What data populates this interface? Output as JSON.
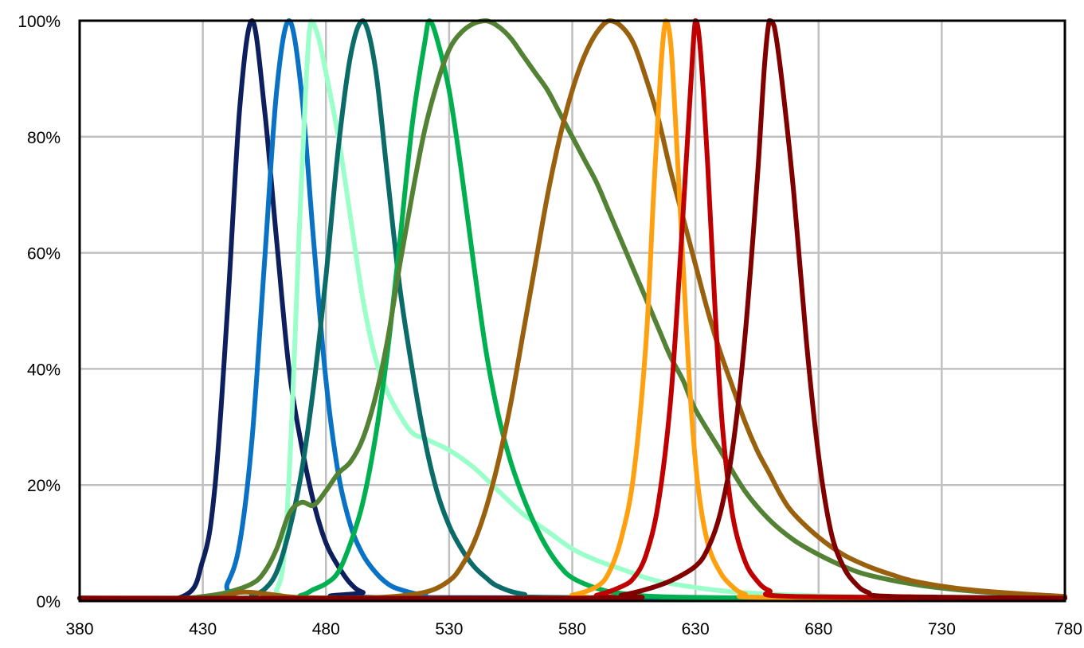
{
  "chart_data": {
    "type": "line",
    "title": "",
    "xlabel": "",
    "ylabel": "",
    "xlim": [
      380,
      780
    ],
    "ylim": [
      0,
      100
    ],
    "x_ticks": [
      380,
      430,
      480,
      530,
      580,
      630,
      680,
      730,
      780
    ],
    "x_tick_labels": [
      "380",
      "430",
      "480",
      "530",
      "580",
      "630",
      "680",
      "730",
      "780"
    ],
    "y_ticks": [
      0,
      20,
      40,
      60,
      80,
      100
    ],
    "y_tick_labels": [
      "0%",
      "20%",
      "40%",
      "60%",
      "80%",
      "100%"
    ],
    "grid": true,
    "legend": "none",
    "series": [
      {
        "color": "#0d1f5c",
        "points": [
          [
            380,
            0.5
          ],
          [
            420,
            0.5
          ],
          [
            430,
            7
          ],
          [
            435,
            20
          ],
          [
            440,
            50
          ],
          [
            445,
            85
          ],
          [
            450,
            100
          ],
          [
            455,
            85
          ],
          [
            460,
            62
          ],
          [
            465,
            40
          ],
          [
            470,
            27
          ],
          [
            475,
            17
          ],
          [
            480,
            10
          ],
          [
            485,
            6
          ],
          [
            490,
            3
          ],
          [
            495,
            1.5
          ],
          [
            505,
            0.6
          ],
          [
            780,
            0.5
          ]
        ]
      },
      {
        "color": "#0a72c4",
        "points": [
          [
            380,
            0.5
          ],
          [
            435,
            0.5
          ],
          [
            440,
            3
          ],
          [
            445,
            10
          ],
          [
            450,
            28
          ],
          [
            455,
            58
          ],
          [
            460,
            88
          ],
          [
            465,
            100
          ],
          [
            470,
            88
          ],
          [
            475,
            62
          ],
          [
            480,
            38
          ],
          [
            485,
            22
          ],
          [
            490,
            13
          ],
          [
            495,
            8
          ],
          [
            500,
            5
          ],
          [
            505,
            3
          ],
          [
            510,
            2
          ],
          [
            520,
            1
          ],
          [
            540,
            0.5
          ],
          [
            780,
            0.5
          ]
        ]
      },
      {
        "color": "#9bffca",
        "points": [
          [
            380,
            0.5
          ],
          [
            455,
            0.5
          ],
          [
            460,
            2
          ],
          [
            463,
            8
          ],
          [
            466,
            30
          ],
          [
            469,
            62
          ],
          [
            472,
            90
          ],
          [
            474,
            100
          ],
          [
            477,
            97
          ],
          [
            480,
            91
          ],
          [
            485,
            80
          ],
          [
            490,
            66
          ],
          [
            495,
            52
          ],
          [
            500,
            42
          ],
          [
            505,
            36
          ],
          [
            510,
            32
          ],
          [
            515,
            29
          ],
          [
            520,
            28
          ],
          [
            530,
            26
          ],
          [
            540,
            23
          ],
          [
            550,
            19
          ],
          [
            560,
            15
          ],
          [
            570,
            12
          ],
          [
            580,
            9
          ],
          [
            590,
            7
          ],
          [
            600,
            5.5
          ],
          [
            610,
            4
          ],
          [
            620,
            3
          ],
          [
            640,
            1.8
          ],
          [
            660,
            1.2
          ],
          [
            700,
            0.7
          ],
          [
            780,
            0.5
          ]
        ]
      },
      {
        "color": "#0a6b68",
        "points": [
          [
            380,
            0.5
          ],
          [
            445,
            0.5
          ],
          [
            450,
            1
          ],
          [
            455,
            2
          ],
          [
            460,
            5
          ],
          [
            465,
            12
          ],
          [
            470,
            22
          ],
          [
            475,
            37
          ],
          [
            480,
            56
          ],
          [
            485,
            78
          ],
          [
            490,
            94
          ],
          [
            495,
            100
          ],
          [
            500,
            92
          ],
          [
            505,
            73
          ],
          [
            510,
            54
          ],
          [
            515,
            40
          ],
          [
            520,
            28
          ],
          [
            525,
            19
          ],
          [
            530,
            13
          ],
          [
            535,
            9
          ],
          [
            540,
            6
          ],
          [
            545,
            4
          ],
          [
            550,
            2.5
          ],
          [
            560,
            1.2
          ],
          [
            580,
            0.6
          ],
          [
            780,
            0.5
          ]
        ]
      },
      {
        "color": "#00b050",
        "points": [
          [
            380,
            0.5
          ],
          [
            460,
            0.5
          ],
          [
            470,
            1
          ],
          [
            475,
            2
          ],
          [
            480,
            3
          ],
          [
            485,
            5
          ],
          [
            490,
            10
          ],
          [
            495,
            17
          ],
          [
            500,
            28
          ],
          [
            505,
            43
          ],
          [
            510,
            62
          ],
          [
            515,
            82
          ],
          [
            520,
            96
          ],
          [
            522,
            100
          ],
          [
            525,
            97
          ],
          [
            530,
            88
          ],
          [
            535,
            74
          ],
          [
            540,
            58
          ],
          [
            545,
            43
          ],
          [
            550,
            32
          ],
          [
            555,
            24
          ],
          [
            560,
            18
          ],
          [
            565,
            13
          ],
          [
            570,
            9
          ],
          [
            575,
            6
          ],
          [
            580,
            4
          ],
          [
            590,
            2.2
          ],
          [
            600,
            1.3
          ],
          [
            620,
            0.7
          ],
          [
            680,
            0.5
          ],
          [
            780,
            0.5
          ]
        ]
      },
      {
        "color": "#548235",
        "points": [
          [
            380,
            0.5
          ],
          [
            420,
            0.5
          ],
          [
            430,
            0.8
          ],
          [
            440,
            1.5
          ],
          [
            450,
            3
          ],
          [
            455,
            5
          ],
          [
            460,
            9
          ],
          [
            465,
            15
          ],
          [
            470,
            17
          ],
          [
            475,
            16.5
          ],
          [
            480,
            19
          ],
          [
            485,
            22
          ],
          [
            490,
            24
          ],
          [
            495,
            28
          ],
          [
            500,
            35
          ],
          [
            505,
            45
          ],
          [
            510,
            58
          ],
          [
            515,
            70
          ],
          [
            520,
            81
          ],
          [
            525,
            89
          ],
          [
            530,
            95
          ],
          [
            535,
            98
          ],
          [
            540,
            99.5
          ],
          [
            545,
            100
          ],
          [
            550,
            99
          ],
          [
            555,
            97
          ],
          [
            560,
            94
          ],
          [
            565,
            91
          ],
          [
            570,
            88
          ],
          [
            575,
            84
          ],
          [
            580,
            80
          ],
          [
            585,
            76
          ],
          [
            590,
            72
          ],
          [
            595,
            67
          ],
          [
            600,
            62
          ],
          [
            605,
            57
          ],
          [
            610,
            52
          ],
          [
            615,
            47
          ],
          [
            620,
            42
          ],
          [
            625,
            38
          ],
          [
            630,
            33
          ],
          [
            640,
            26
          ],
          [
            650,
            19
          ],
          [
            660,
            14
          ],
          [
            670,
            10.5
          ],
          [
            680,
            8
          ],
          [
            690,
            6
          ],
          [
            700,
            4.5
          ],
          [
            720,
            2.8
          ],
          [
            740,
            1.8
          ],
          [
            760,
            1.2
          ],
          [
            780,
            0.8
          ]
        ]
      },
      {
        "color": "#99600d",
        "points": [
          [
            380,
            0.5
          ],
          [
            430,
            0.5
          ],
          [
            440,
            1
          ],
          [
            445,
            1.5
          ],
          [
            450,
            1.5
          ],
          [
            460,
            1
          ],
          [
            470,
            0.6
          ],
          [
            500,
            0.6
          ],
          [
            520,
            1.5
          ],
          [
            530,
            3.5
          ],
          [
            535,
            6
          ],
          [
            540,
            10
          ],
          [
            545,
            16
          ],
          [
            550,
            24
          ],
          [
            555,
            34
          ],
          [
            560,
            46
          ],
          [
            565,
            58
          ],
          [
            570,
            70
          ],
          [
            575,
            80
          ],
          [
            580,
            88
          ],
          [
            585,
            94
          ],
          [
            590,
            98
          ],
          [
            595,
            100
          ],
          [
            600,
            99
          ],
          [
            605,
            96
          ],
          [
            610,
            90
          ],
          [
            615,
            83
          ],
          [
            620,
            74
          ],
          [
            625,
            66
          ],
          [
            630,
            58
          ],
          [
            635,
            50
          ],
          [
            640,
            43
          ],
          [
            645,
            37
          ],
          [
            650,
            31
          ],
          [
            655,
            26
          ],
          [
            660,
            22
          ],
          [
            665,
            18
          ],
          [
            670,
            15
          ],
          [
            680,
            11
          ],
          [
            690,
            8
          ],
          [
            700,
            6
          ],
          [
            710,
            4.5
          ],
          [
            720,
            3.3
          ],
          [
            740,
            2
          ],
          [
            760,
            1.3
          ],
          [
            780,
            0.8
          ]
        ]
      },
      {
        "color": "#ffa010",
        "points": [
          [
            380,
            0.5
          ],
          [
            570,
            0.5
          ],
          [
            580,
            1
          ],
          [
            590,
            2.5
          ],
          [
            595,
            5
          ],
          [
            600,
            11
          ],
          [
            605,
            22
          ],
          [
            610,
            45
          ],
          [
            613,
            70
          ],
          [
            616,
            92
          ],
          [
            618,
            100
          ],
          [
            620,
            96
          ],
          [
            622,
            82
          ],
          [
            625,
            58
          ],
          [
            628,
            35
          ],
          [
            631,
            20
          ],
          [
            635,
            10
          ],
          [
            640,
            5
          ],
          [
            645,
            2.5
          ],
          [
            650,
            1.2
          ],
          [
            660,
            0.6
          ],
          [
            780,
            0.5
          ]
        ]
      },
      {
        "color": "#c00000",
        "points": [
          [
            380,
            0.5
          ],
          [
            580,
            0.5
          ],
          [
            590,
            1
          ],
          [
            600,
            2.5
          ],
          [
            605,
            4
          ],
          [
            610,
            8
          ],
          [
            615,
            17
          ],
          [
            620,
            35
          ],
          [
            624,
            60
          ],
          [
            628,
            88
          ],
          [
            630,
            100
          ],
          [
            632,
            95
          ],
          [
            635,
            75
          ],
          [
            638,
            50
          ],
          [
            641,
            30
          ],
          [
            645,
            15
          ],
          [
            650,
            7
          ],
          [
            655,
            3.5
          ],
          [
            660,
            1.8
          ],
          [
            670,
            0.8
          ],
          [
            780,
            0.5
          ]
        ]
      },
      {
        "color": "#800000",
        "points": [
          [
            380,
            0.5
          ],
          [
            590,
            0.5
          ],
          [
            600,
            1
          ],
          [
            610,
            2
          ],
          [
            620,
            3.5
          ],
          [
            630,
            6
          ],
          [
            635,
            9
          ],
          [
            640,
            15
          ],
          [
            645,
            26
          ],
          [
            650,
            45
          ],
          [
            655,
            72
          ],
          [
            658,
            92
          ],
          [
            660,
            100
          ],
          [
            662,
            99
          ],
          [
            665,
            90
          ],
          [
            670,
            70
          ],
          [
            675,
            45
          ],
          [
            680,
            25
          ],
          [
            685,
            12
          ],
          [
            690,
            6
          ],
          [
            695,
            3
          ],
          [
            700,
            1.5
          ],
          [
            710,
            0.8
          ],
          [
            780,
            0.5
          ]
        ]
      }
    ]
  }
}
